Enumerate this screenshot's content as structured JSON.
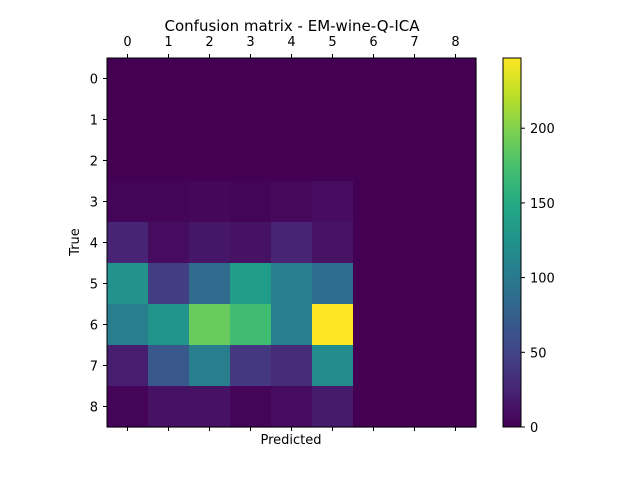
{
  "chart_data": {
    "type": "heatmap",
    "title": "Confusion matrix - EM-wine-Q-ICA",
    "xlabel": "Predicted",
    "ylabel": "True",
    "x_categories": [
      "0",
      "1",
      "2",
      "3",
      "4",
      "5",
      "6",
      "7",
      "8"
    ],
    "y_categories": [
      "0",
      "1",
      "2",
      "3",
      "4",
      "5",
      "6",
      "7",
      "8"
    ],
    "values": [
      [
        0,
        0,
        0,
        0,
        0,
        0,
        0,
        0,
        0
      ],
      [
        0,
        0,
        0,
        0,
        0,
        0,
        0,
        0,
        0
      ],
      [
        0,
        0,
        0,
        0,
        0,
        0,
        0,
        0,
        0
      ],
      [
        2,
        3,
        4,
        3,
        5,
        8,
        0,
        0,
        0
      ],
      [
        25,
        8,
        15,
        12,
        25,
        13,
        0,
        0,
        0
      ],
      [
        125,
        45,
        85,
        135,
        105,
        88,
        0,
        0,
        0
      ],
      [
        105,
        128,
        190,
        170,
        105,
        247,
        0,
        0,
        0
      ],
      [
        20,
        68,
        105,
        40,
        30,
        118,
        0,
        0,
        0
      ],
      [
        3,
        12,
        12,
        3,
        8,
        18,
        0,
        0,
        0
      ]
    ],
    "colormap": "viridis",
    "color_range": [
      0,
      247
    ],
    "colorbar_ticks": [
      0,
      50,
      100,
      150,
      200
    ],
    "x_tick_position": "top",
    "grid": false
  }
}
